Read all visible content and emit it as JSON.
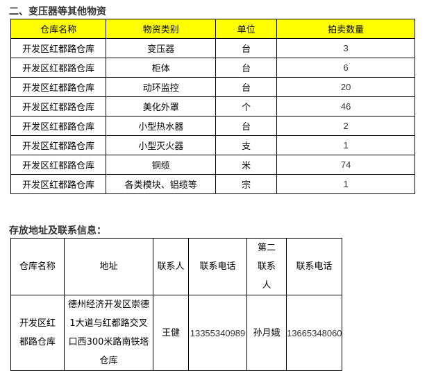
{
  "section1": {
    "title": "二、变压器等其他物资",
    "headers": [
      "仓库名称",
      "物资类别",
      "单位",
      "拍卖数量"
    ],
    "rows": [
      [
        "开发区红都路仓库",
        "变压器",
        "台",
        "3"
      ],
      [
        "开发区红都路仓库",
        "柜体",
        "台",
        "6"
      ],
      [
        "开发区红都路仓库",
        "动环监控",
        "台",
        "20"
      ],
      [
        "开发区红都路仓库",
        "美化外罩",
        "个",
        "46"
      ],
      [
        "开发区红都路仓库",
        "小型热水器",
        "台",
        "2"
      ],
      [
        "开发区红都路仓库",
        "小型灭火器",
        "支",
        "1"
      ],
      [
        "开发区红都路仓库",
        "铜缆",
        "米",
        "74"
      ],
      [
        "开发区红都路仓库",
        "各类模块、铝缆等",
        "宗",
        "1"
      ]
    ],
    "header_color": "#ffff00"
  },
  "section2": {
    "title": "存放地址及联系信息：",
    "headers": [
      "仓库名称",
      "地址",
      "联系人",
      "联系电话",
      "第二联系人",
      "联系电话"
    ],
    "row": [
      "开发区红都路仓库",
      "德州经济开发区崇德1大道与红都路交叉口西300米路南铁塔仓库",
      "王健",
      "13355340989",
      "孙月娥",
      "13665348060"
    ]
  }
}
